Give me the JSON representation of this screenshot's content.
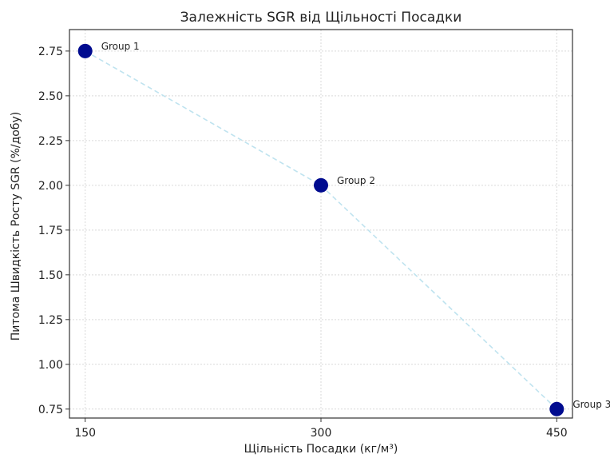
{
  "chart_data": {
    "type": "scatter",
    "title": "Залежність SGR від Щільності Посадки",
    "xlabel": "Щільність Посадки (кг/м³)",
    "ylabel": "Питома Швидкість Росту SGR (%/добу)",
    "xlim": [
      140,
      460
    ],
    "ylim": [
      0.7,
      2.87
    ],
    "x_ticks": [
      150,
      300,
      450
    ],
    "y_ticks": [
      0.75,
      1.0,
      1.25,
      1.5,
      1.75,
      2.0,
      2.25,
      2.5,
      2.75
    ],
    "grid": true,
    "points": [
      {
        "label": "Group 1",
        "x": 150,
        "y": 2.75
      },
      {
        "label": "Group 2",
        "x": 300,
        "y": 2.0
      },
      {
        "label": "Group 3",
        "x": 450,
        "y": 0.75
      }
    ],
    "connecting_line": "dashed",
    "colors": {
      "point": "#000b8f",
      "line": "#bfe3ef"
    }
  }
}
